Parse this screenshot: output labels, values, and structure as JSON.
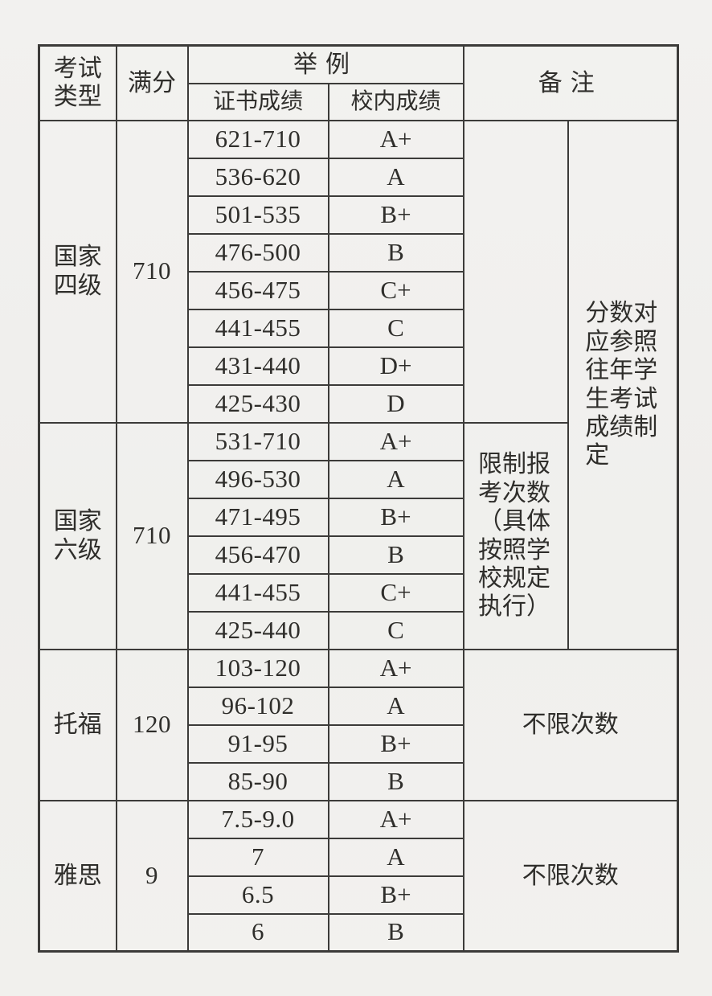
{
  "table": {
    "header": {
      "exam_type": "考试类型",
      "full_score": "满分",
      "example": "举例",
      "cert_score": "证书成绩",
      "school_score": "校内成绩",
      "remark": "备注"
    },
    "sections": [
      {
        "exam": "国家四级",
        "full_score": "710",
        "remark": "",
        "rows": [
          {
            "range": "621-710",
            "grade": "A+"
          },
          {
            "range": "536-620",
            "grade": "A"
          },
          {
            "range": "501-535",
            "grade": "B+"
          },
          {
            "range": "476-500",
            "grade": "B"
          },
          {
            "range": "456-475",
            "grade": "C+"
          },
          {
            "range": "441-455",
            "grade": "C"
          },
          {
            "range": "431-440",
            "grade": "D+"
          },
          {
            "range": "425-430",
            "grade": "D"
          }
        ]
      },
      {
        "exam": "国家六级",
        "full_score": "710",
        "remark": "限制报考次数（具体按照学校规定执行）",
        "rows": [
          {
            "range": "531-710",
            "grade": "A+"
          },
          {
            "range": "496-530",
            "grade": "A"
          },
          {
            "range": "471-495",
            "grade": "B+"
          },
          {
            "range": "456-470",
            "grade": "B"
          },
          {
            "range": "441-455",
            "grade": "C+"
          },
          {
            "range": "425-440",
            "grade": "C"
          }
        ]
      },
      {
        "exam": "托福",
        "full_score": "120",
        "remark": "不限次数",
        "rows": [
          {
            "range": "103-120",
            "grade": "A+"
          },
          {
            "range": "96-102",
            "grade": "A"
          },
          {
            "range": "91-95",
            "grade": "B+"
          },
          {
            "range": "85-90",
            "grade": "B"
          }
        ]
      },
      {
        "exam": "雅思",
        "full_score": "9",
        "remark": "不限次数",
        "rows": [
          {
            "range": "7.5-9.0",
            "grade": "A+"
          },
          {
            "range": "7",
            "grade": "A"
          },
          {
            "range": "6.5",
            "grade": "B+"
          },
          {
            "range": "6",
            "grade": "B"
          }
        ]
      }
    ],
    "shared_remark": "分数对应参照往年学生考试成绩制定"
  }
}
